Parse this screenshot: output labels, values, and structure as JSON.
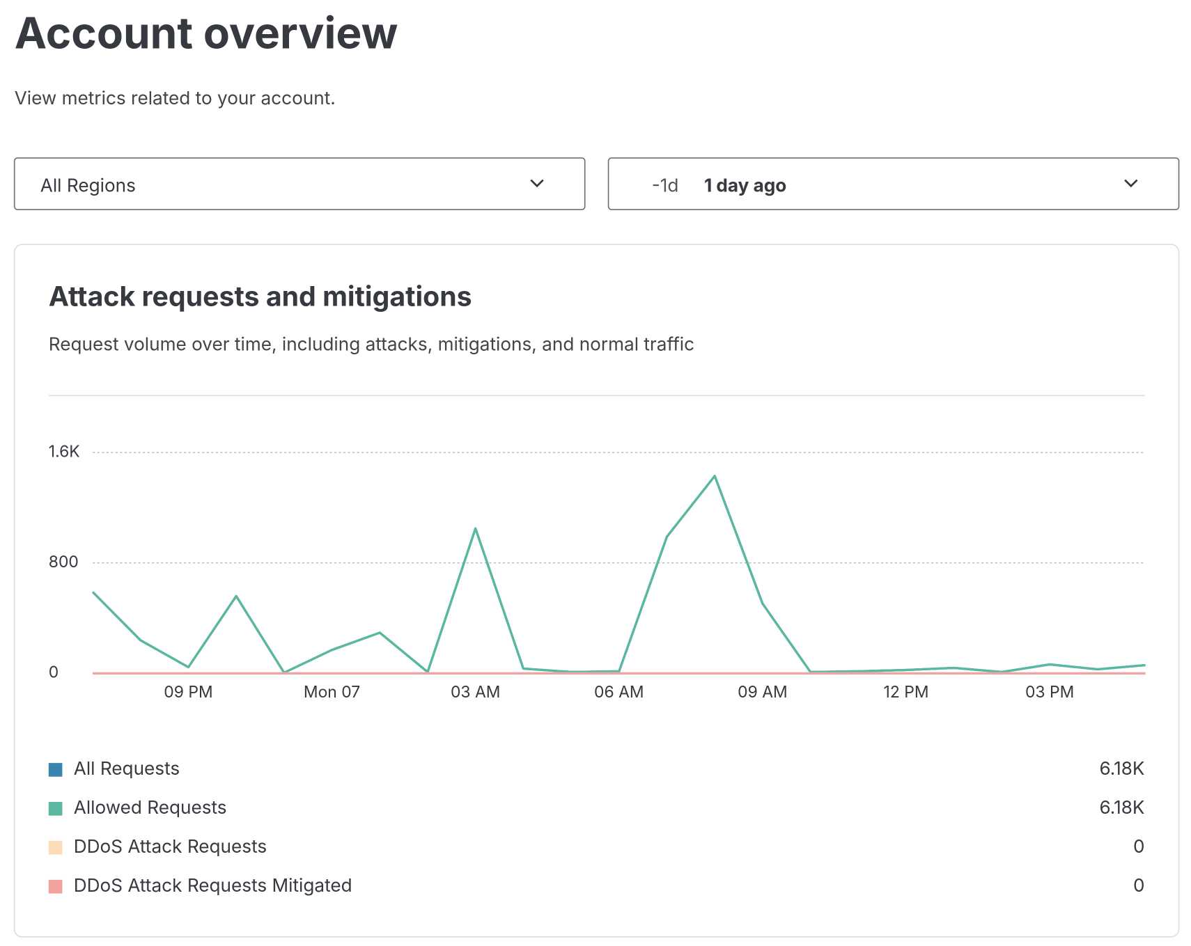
{
  "header": {
    "title": "Account overview",
    "subtitle": "View metrics related to your account."
  },
  "filters": {
    "region": "All Regions",
    "time_short": "-1d",
    "time_label": "1 day ago"
  },
  "chart_data": {
    "type": "line",
    "title": "Attack requests and mitigations",
    "subtitle": "Request volume over time, including attacks, mitigations, and normal traffic",
    "categories": [
      null,
      null,
      "09 PM",
      null,
      null,
      "Mon 07",
      null,
      null,
      "03 AM",
      null,
      null,
      "06 AM",
      null,
      null,
      "09 AM",
      null,
      null,
      "12 PM",
      null,
      null,
      "03 PM",
      null,
      null
    ],
    "series": [
      {
        "name": "All Requests",
        "color": "#3a85b0",
        "values": [
          590,
          240,
          45,
          560,
          5,
          170,
          295,
          10,
          1050,
          35,
          10,
          15,
          990,
          1430,
          505,
          10,
          15,
          25,
          40,
          10,
          65,
          30,
          60
        ],
        "total": {
          "value": 6180,
          "label": "6.18K"
        }
      },
      {
        "name": "Allowed Requests",
        "color": "#5bb8a0",
        "values": [
          590,
          240,
          45,
          560,
          5,
          170,
          295,
          10,
          1050,
          35,
          10,
          15,
          990,
          1430,
          505,
          10,
          15,
          25,
          40,
          10,
          65,
          30,
          60
        ],
        "total": {
          "value": 6180,
          "label": "6.18K"
        }
      },
      {
        "name": "DDoS Attack Requests",
        "color": "#fbdcb4",
        "values": [
          0,
          0,
          0,
          0,
          0,
          0,
          0,
          0,
          0,
          0,
          0,
          0,
          0,
          0,
          0,
          0,
          0,
          0,
          0,
          0,
          0,
          0,
          0
        ],
        "total": 0
      },
      {
        "name": "DDoS Attack Requests Mitigated",
        "color": "#f2a39f",
        "values": [
          0,
          0,
          0,
          0,
          0,
          0,
          0,
          0,
          0,
          0,
          0,
          0,
          0,
          0,
          0,
          0,
          0,
          0,
          0,
          0,
          0,
          0,
          0
        ],
        "total": 0
      }
    ],
    "ylim": [
      0,
      1600
    ],
    "yticks": [
      0,
      800,
      {
        "value": 1600,
        "label": "1.6K"
      }
    ],
    "grid": true
  }
}
